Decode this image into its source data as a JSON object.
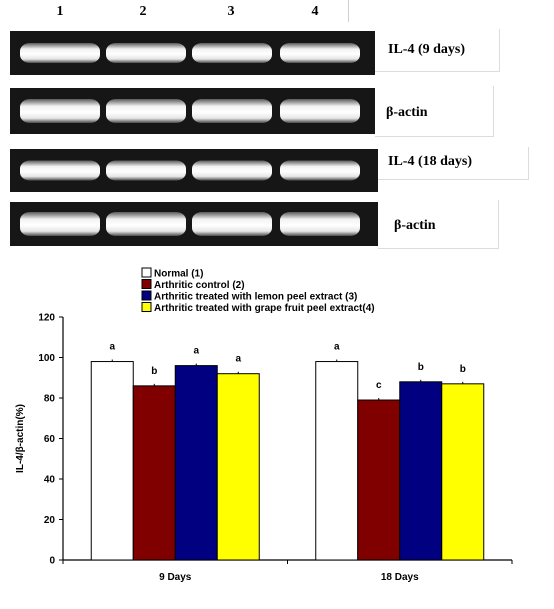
{
  "gel": {
    "lanes": [
      "1",
      "2",
      "3",
      "4"
    ],
    "rows": [
      {
        "label": "IL-4 (9 days)"
      },
      {
        "label": "β-actin"
      },
      {
        "label": "IL-4 (18 days)"
      },
      {
        "label": "β-actin"
      }
    ]
  },
  "chart_data": {
    "type": "bar",
    "categories": [
      "9 Days",
      "18 Days"
    ],
    "series": [
      {
        "name": "Normal (1)",
        "values": [
          98,
          98
        ],
        "letters": [
          "a",
          "a"
        ],
        "color": "#ffffff"
      },
      {
        "name": "Arthritic control (2)",
        "values": [
          86,
          79
        ],
        "letters": [
          "b",
          "c"
        ],
        "color": "#800000"
      },
      {
        "name": "Arthritic treated with lemon peel extract (3)",
        "values": [
          96,
          88
        ],
        "letters": [
          "a",
          "b"
        ],
        "color": "#000080"
      },
      {
        "name": "Arthritic treated with grape fruit peel extract(4)",
        "values": [
          92,
          87
        ],
        "letters": [
          "a",
          "b"
        ],
        "color": "#ffff00"
      }
    ],
    "ylabel": "IL-4/β-actin(%)",
    "ylim": [
      0,
      120
    ],
    "yticks": [
      "0",
      "20",
      "40",
      "60",
      "80",
      "100",
      "120"
    ],
    "legend_position": "top",
    "grid": false
  }
}
